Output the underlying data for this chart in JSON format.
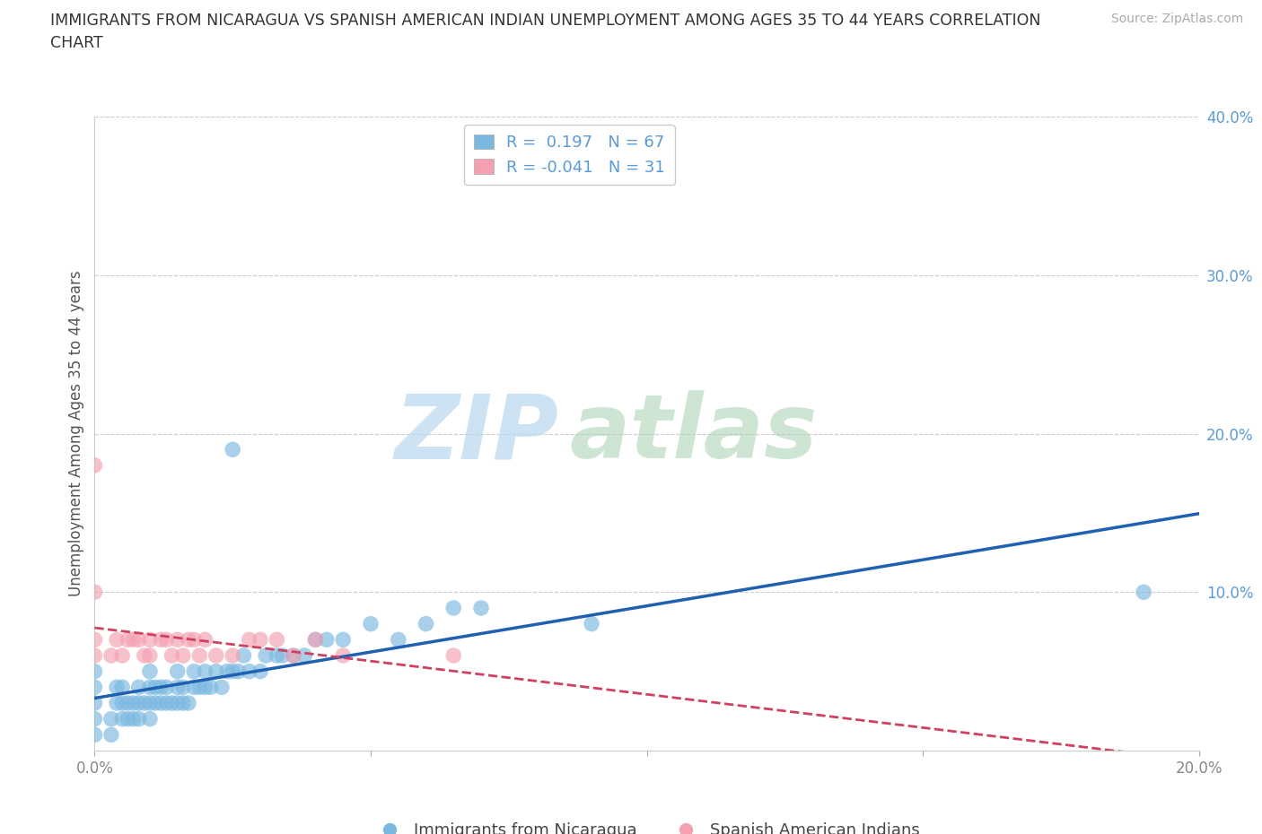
{
  "title_line1": "IMMIGRANTS FROM NICARAGUA VS SPANISH AMERICAN INDIAN UNEMPLOYMENT AMONG AGES 35 TO 44 YEARS CORRELATION",
  "title_line2": "CHART",
  "source": "Source: ZipAtlas.com",
  "ylabel": "Unemployment Among Ages 35 to 44 years",
  "xlim": [
    0.0,
    0.2
  ],
  "ylim": [
    0.0,
    0.4
  ],
  "xticks": [
    0.0,
    0.05,
    0.1,
    0.15,
    0.2
  ],
  "yticks": [
    0.0,
    0.1,
    0.2,
    0.3,
    0.4
  ],
  "blue_R": 0.197,
  "blue_N": 67,
  "pink_R": -0.041,
  "pink_N": 31,
  "blue_color": "#7ab8e0",
  "pink_color": "#f4a0b0",
  "blue_line_color": "#2060b0",
  "pink_line_color": "#d04060",
  "watermark_zip": "ZIP",
  "watermark_atlas": "atlas",
  "legend_label_blue": "Immigrants from Nicaragua",
  "legend_label_pink": "Spanish American Indians",
  "blue_scatter_x": [
    0.0,
    0.0,
    0.0,
    0.0,
    0.0,
    0.003,
    0.003,
    0.004,
    0.004,
    0.005,
    0.005,
    0.005,
    0.006,
    0.006,
    0.007,
    0.007,
    0.008,
    0.008,
    0.008,
    0.009,
    0.01,
    0.01,
    0.01,
    0.01,
    0.011,
    0.011,
    0.012,
    0.012,
    0.013,
    0.013,
    0.014,
    0.015,
    0.015,
    0.015,
    0.016,
    0.016,
    0.017,
    0.018,
    0.018,
    0.019,
    0.02,
    0.02,
    0.021,
    0.022,
    0.023,
    0.024,
    0.025,
    0.026,
    0.027,
    0.028,
    0.03,
    0.031,
    0.033,
    0.034,
    0.036,
    0.038,
    0.04,
    0.042,
    0.045,
    0.05,
    0.055,
    0.06,
    0.065,
    0.07,
    0.09,
    0.19,
    0.025
  ],
  "blue_scatter_y": [
    0.01,
    0.02,
    0.03,
    0.04,
    0.05,
    0.01,
    0.02,
    0.03,
    0.04,
    0.02,
    0.03,
    0.04,
    0.02,
    0.03,
    0.02,
    0.03,
    0.02,
    0.03,
    0.04,
    0.03,
    0.02,
    0.03,
    0.04,
    0.05,
    0.03,
    0.04,
    0.03,
    0.04,
    0.03,
    0.04,
    0.03,
    0.03,
    0.04,
    0.05,
    0.03,
    0.04,
    0.03,
    0.04,
    0.05,
    0.04,
    0.04,
    0.05,
    0.04,
    0.05,
    0.04,
    0.05,
    0.05,
    0.05,
    0.06,
    0.05,
    0.05,
    0.06,
    0.06,
    0.06,
    0.06,
    0.06,
    0.07,
    0.07,
    0.07,
    0.08,
    0.07,
    0.08,
    0.09,
    0.09,
    0.08,
    0.1,
    0.19
  ],
  "pink_scatter_x": [
    0.0,
    0.0,
    0.0,
    0.0,
    0.003,
    0.004,
    0.005,
    0.006,
    0.007,
    0.008,
    0.009,
    0.01,
    0.01,
    0.012,
    0.013,
    0.014,
    0.015,
    0.016,
    0.017,
    0.018,
    0.019,
    0.02,
    0.022,
    0.025,
    0.028,
    0.03,
    0.033,
    0.036,
    0.04,
    0.045,
    0.065
  ],
  "pink_scatter_y": [
    0.06,
    0.07,
    0.1,
    0.18,
    0.06,
    0.07,
    0.06,
    0.07,
    0.07,
    0.07,
    0.06,
    0.06,
    0.07,
    0.07,
    0.07,
    0.06,
    0.07,
    0.06,
    0.07,
    0.07,
    0.06,
    0.07,
    0.06,
    0.06,
    0.07,
    0.07,
    0.07,
    0.06,
    0.07,
    0.06,
    0.06
  ],
  "grid_color": "#cccccc",
  "background_color": "#ffffff",
  "tick_color_y": "#5b9bd5",
  "tick_color_x": "#888888",
  "ylabel_color": "#555555",
  "title_color": "#333333"
}
